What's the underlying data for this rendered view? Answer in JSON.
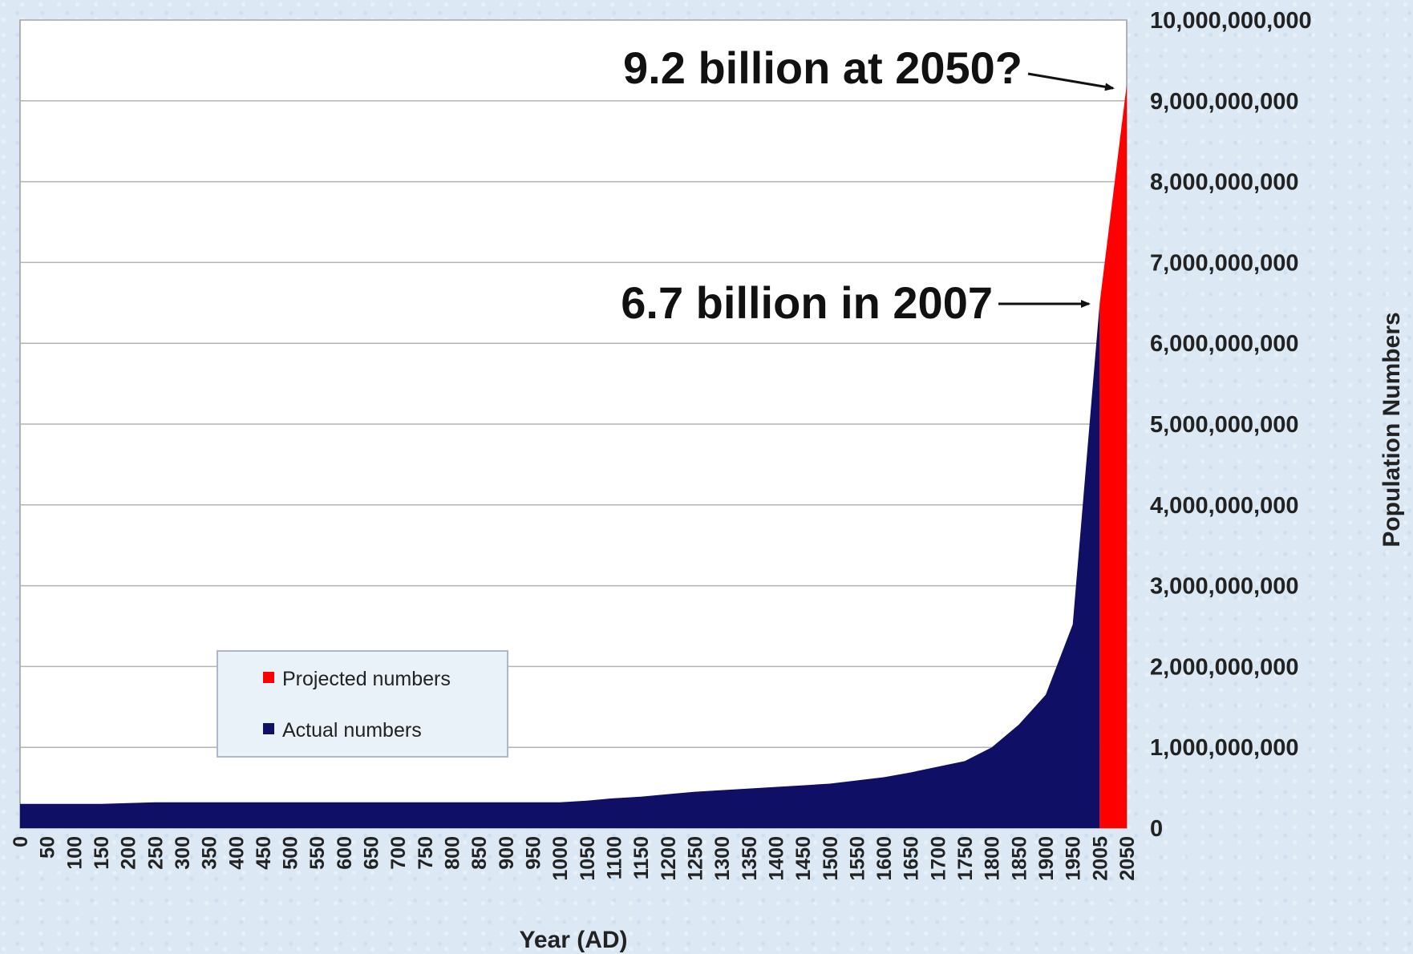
{
  "chart_data": {
    "type": "area",
    "title": "",
    "xlabel": "Year (AD)",
    "ylabel": "Population Numbers",
    "ylim": [
      0,
      10000000000
    ],
    "y_axis_side": "right",
    "grid": true,
    "legend_position": "bottom-left",
    "y_ticks": [
      "10,000,000,000",
      "9,000,000,000",
      "8,000,000,000",
      "7,000,000,000",
      "6,000,000,000",
      "5,000,000,000",
      "4,000,000,000",
      "3,000,000,000",
      "2,000,000,000",
      "1,000,000,000",
      "0"
    ],
    "categories": [
      "0",
      "50",
      "100",
      "150",
      "200",
      "250",
      "300",
      "350",
      "400",
      "450",
      "500",
      "550",
      "600",
      "650",
      "700",
      "750",
      "800",
      "850",
      "900",
      "950",
      "1000",
      "1050",
      "1100",
      "1150",
      "1200",
      "1250",
      "1300",
      "1350",
      "1400",
      "1450",
      "1500",
      "1550",
      "1600",
      "1650",
      "1700",
      "1750",
      "1800",
      "1850",
      "1900",
      "1950",
      "2005",
      "2050"
    ],
    "series": [
      {
        "name": "Actual numbers",
        "color": "#0f1065",
        "values": [
          300000000,
          300000000,
          300000000,
          300000000,
          310000000,
          320000000,
          320000000,
          320000000,
          320000000,
          320000000,
          320000000,
          320000000,
          320000000,
          320000000,
          320000000,
          320000000,
          320000000,
          320000000,
          320000000,
          320000000,
          320000000,
          340000000,
          370000000,
          390000000,
          420000000,
          450000000,
          470000000,
          490000000,
          510000000,
          530000000,
          550000000,
          590000000,
          630000000,
          690000000,
          760000000,
          830000000,
          1000000000,
          1280000000,
          1650000000,
          2520000000,
          6500000000,
          null
        ]
      },
      {
        "name": "Projected numbers",
        "color": "#ff0000",
        "values": [
          null,
          null,
          null,
          null,
          null,
          null,
          null,
          null,
          null,
          null,
          null,
          null,
          null,
          null,
          null,
          null,
          null,
          null,
          null,
          null,
          null,
          null,
          null,
          null,
          null,
          null,
          null,
          null,
          null,
          null,
          null,
          null,
          null,
          null,
          null,
          null,
          null,
          null,
          null,
          null,
          6500000000,
          9200000000
        ]
      }
    ],
    "annotations": [
      {
        "text": "9.2 billion at 2050?",
        "points_to": {
          "x": "2050",
          "y": 9200000000
        }
      },
      {
        "text": "6.7 billion in 2007",
        "points_to": {
          "x": "2005",
          "y": 6500000000
        }
      }
    ]
  }
}
